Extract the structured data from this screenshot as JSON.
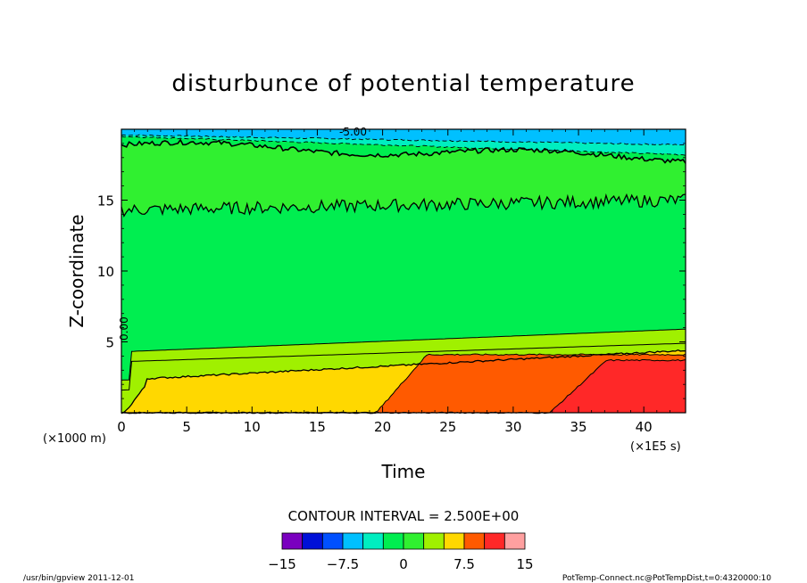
{
  "chart_data": {
    "type": "contour",
    "title": "disturbunce of potential temperature",
    "xlabel": "Time",
    "ylabel": "Z-coordinate",
    "x_unit": "(×1E5 s)",
    "y_unit": "(×1000 m)",
    "xlim": [
      0,
      43.2
    ],
    "ylim": [
      0,
      20
    ],
    "x_ticks": [
      "0",
      "5",
      "10",
      "15",
      "20",
      "25",
      "30",
      "35",
      "40"
    ],
    "y_ticks": [
      "5",
      "10",
      "15"
    ],
    "contour_interval_text": "CONTOUR INTERVAL = 2.500E+00",
    "contour_labels": [
      "-5.00",
      "0.00"
    ],
    "colorbar": {
      "labels": [
        "−15",
        "−7.5",
        "0",
        "7.5",
        "15"
      ],
      "levels": [
        -15,
        -12.5,
        -10,
        -7.5,
        -5,
        -2.5,
        0,
        2.5,
        5,
        7.5,
        10,
        12.5,
        15
      ],
      "colors": [
        "#7a00bf",
        "#0010d8",
        "#0050ff",
        "#00c0ff",
        "#00eec0",
        "#00ee50",
        "#30f030",
        "#a0f000",
        "#ffd800",
        "#ff8000",
        "#ff3020",
        "#ff2828",
        "#ffa0a0"
      ]
    },
    "field_bands": [
      {
        "level_low": -7.5,
        "level_high": -5,
        "color": "#00c0ff",
        "z_top": 20,
        "z_bottom_start": 19.6,
        "z_bottom_end": 18.9
      },
      {
        "level_low": -5,
        "level_high": -2.5,
        "color": "#00eec0",
        "z_top": 19.6,
        "z_bottom_start": 19.5,
        "z_bottom_end": 18.3
      },
      {
        "level_low": -2.5,
        "level_high": 0,
        "color": "#00ee50",
        "z_top": 19.5,
        "z_bottom_start": 19.2,
        "z_bottom_end": 17.4
      },
      {
        "level_low": 0,
        "level_high": 2.5,
        "color": "#30f030",
        "note": "upper"
      },
      {
        "level_low": 2.5,
        "level_high": 5,
        "color": "#00ee50",
        "note": "middle"
      },
      {
        "level_low": 5,
        "level_high": 7.5,
        "color": "#a0f000"
      },
      {
        "level_low": 7.5,
        "level_high": 10,
        "color": "#ffd800"
      },
      {
        "level_low": 10,
        "level_high": 12.5,
        "color": "#ff5a00"
      },
      {
        "level_low": 12.5,
        "level_high": 15,
        "color": "#ff2828"
      }
    ]
  },
  "footer": {
    "left": "/usr/bin/gpview   2011-12-01",
    "right": "PotTemp-Connect.nc@PotTempDist,t=0:4320000:10"
  }
}
